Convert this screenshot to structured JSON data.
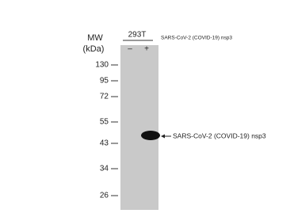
{
  "blot": {
    "cell_line": "293T",
    "mw_label": "MW",
    "mw_unit": "(kDa)",
    "lanes": [
      "–",
      "+"
    ],
    "lane_label": "SARS-CoV-2 (COVID-19) nsp3",
    "markers": [
      "130",
      "95",
      "72",
      "55",
      "43",
      "34",
      "26"
    ],
    "band_label": "SARS-CoV-2 (COVID-19) nsp3"
  }
}
